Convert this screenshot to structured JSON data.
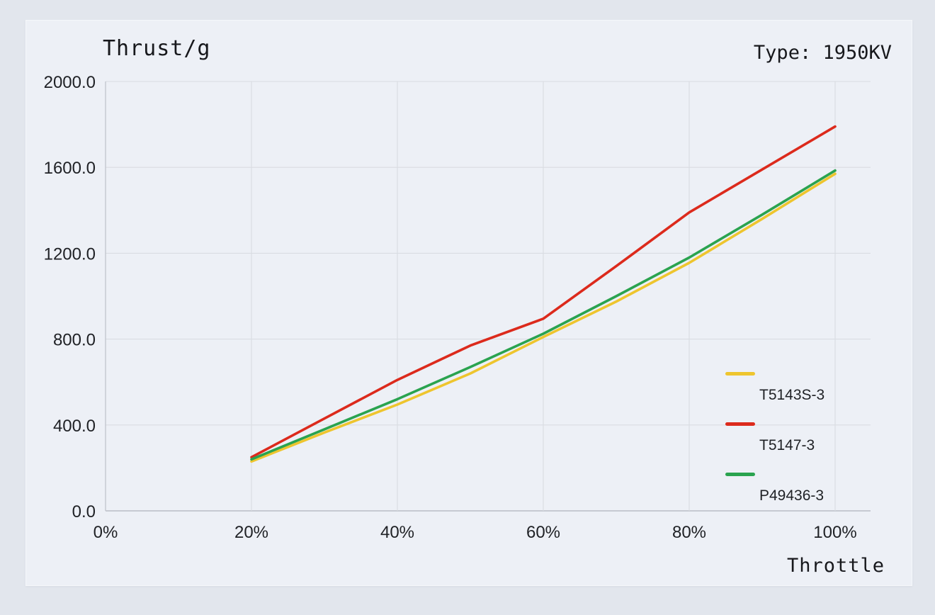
{
  "header": {
    "title": "Thrust/g",
    "type_label": "Type: 1950KV"
  },
  "chart_data": {
    "type": "line",
    "title": "Thrust/g",
    "xlabel": "Throttle",
    "ylabel": "Thrust/g",
    "x_ticks": [
      "0%",
      "20%",
      "40%",
      "60%",
      "80%",
      "100%"
    ],
    "x_tick_values": [
      0,
      20,
      40,
      60,
      80,
      100
    ],
    "y_ticks": [
      "0.0",
      "400.0",
      "800.0",
      "1200.0",
      "1600.0",
      "2000.0"
    ],
    "y_tick_values": [
      0,
      400,
      800,
      1200,
      1600,
      2000
    ],
    "xlim": [
      0,
      104.8
    ],
    "ylim": [
      0,
      2000
    ],
    "grid": true,
    "legend_position": "inside-right",
    "x": [
      20,
      30,
      40,
      50,
      60,
      70,
      80,
      90,
      100
    ],
    "series": [
      {
        "name": "T5143S-3",
        "color": "#eec52e",
        "values": [
          230,
          365,
          495,
          640,
          810,
          975,
          1155,
          1360,
          1570
        ]
      },
      {
        "name": "T5147-3",
        "color": "#dc2a1c",
        "values": [
          250,
          430,
          610,
          770,
          895,
          1140,
          1390,
          1590,
          1790
        ]
      },
      {
        "name": "P49436-3",
        "color": "#2aa34f",
        "values": [
          240,
          380,
          520,
          670,
          825,
          1000,
          1180,
          1380,
          1585
        ]
      }
    ]
  },
  "colors": {
    "page_background": "#e2e6ed",
    "panel_background": "#edf0f6",
    "gridline": "#d9dce2",
    "axis": "#b9bec6",
    "text": "#1f2125"
  }
}
